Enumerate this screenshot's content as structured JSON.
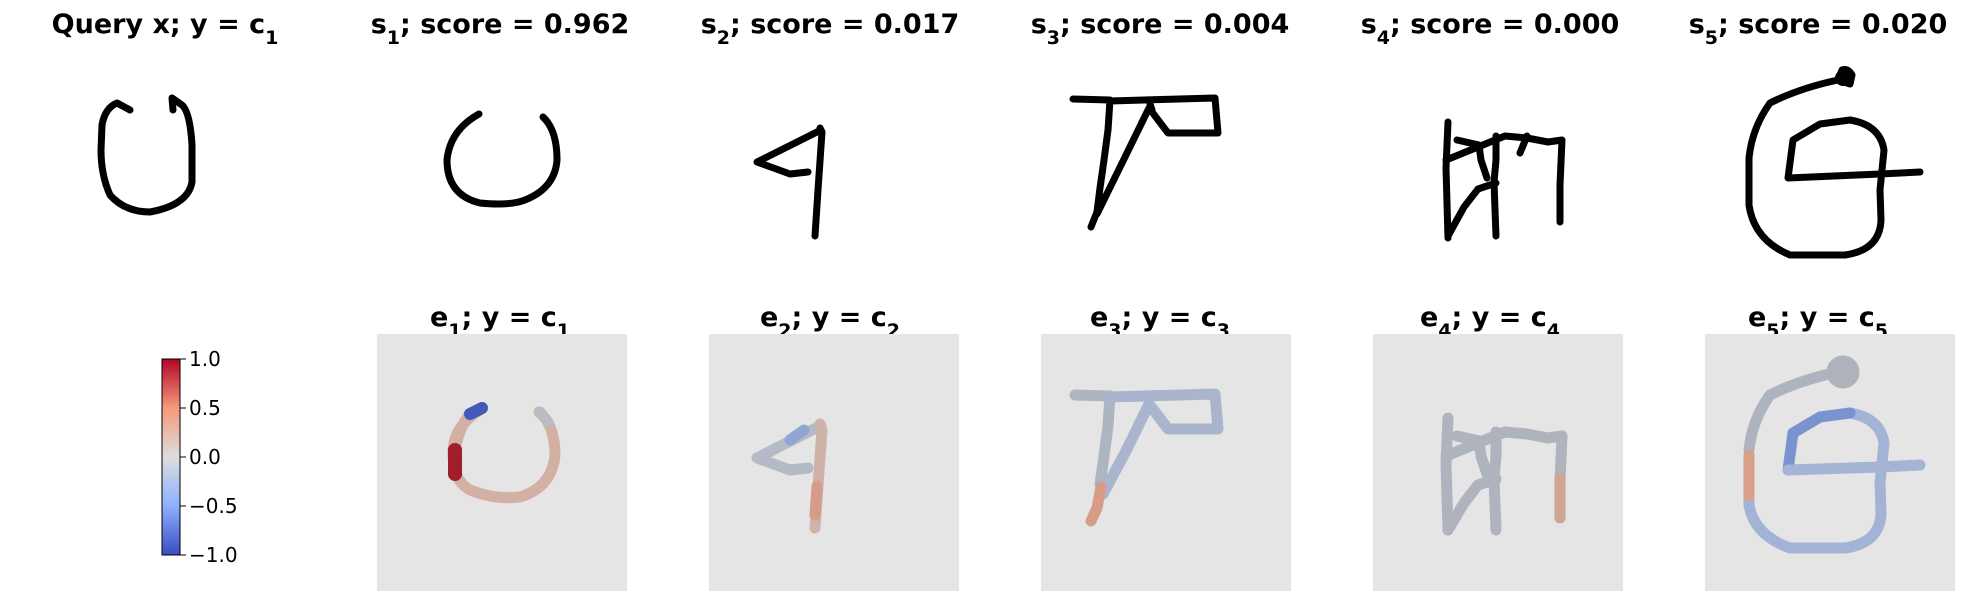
{
  "top_row": [
    {
      "prefix": "Query x; y",
      "eq": "=",
      "var": "c",
      "sub": "1"
    },
    {
      "var_pre": "s",
      "pre_sub": "1",
      "rest": "; score = 0.962"
    },
    {
      "var_pre": "s",
      "pre_sub": "2",
      "rest": "; score = 0.017"
    },
    {
      "var_pre": "s",
      "pre_sub": "3",
      "rest": "; score = 0.004"
    },
    {
      "var_pre": "s",
      "pre_sub": "4",
      "rest": "; score = 0.000"
    },
    {
      "var_pre": "s",
      "pre_sub": "5",
      "rest": "; score = 0.020"
    }
  ],
  "bottom_row": [
    {
      "var_pre": "e",
      "pre_sub": "1",
      "mid": "; y",
      "eq": "=",
      "var": "c",
      "sub": "1"
    },
    {
      "var_pre": "e",
      "pre_sub": "2",
      "mid": "; y",
      "eq": "=",
      "var": "c",
      "sub": "2"
    },
    {
      "var_pre": "e",
      "pre_sub": "3",
      "mid": "; y",
      "eq": "=",
      "var": "c",
      "sub": "3"
    },
    {
      "var_pre": "e",
      "pre_sub": "4",
      "mid": "; y",
      "eq": "=",
      "var": "c",
      "sub": "4"
    },
    {
      "var_pre": "e",
      "pre_sub": "5",
      "mid": "; y",
      "eq": "=",
      "var": "c",
      "sub": "5"
    }
  ],
  "colorbar": {
    "ticks": [
      "1.0",
      "0.5",
      "0.0",
      "−0.5",
      "−1.0"
    ],
    "colormap": "coolwarm",
    "low_color": "#3b4cc0",
    "mid_color": "#dddddd",
    "high_color": "#b40426"
  },
  "colors": {
    "stroke": "#000000",
    "panel_bg": "#e5e5e5",
    "neutral_stroke": "#aab0b8",
    "warm": "#d8a08c",
    "strong_warm": "#a01d2a",
    "cool": "#9fb2dc",
    "strong_cool": "#4358b8"
  }
}
